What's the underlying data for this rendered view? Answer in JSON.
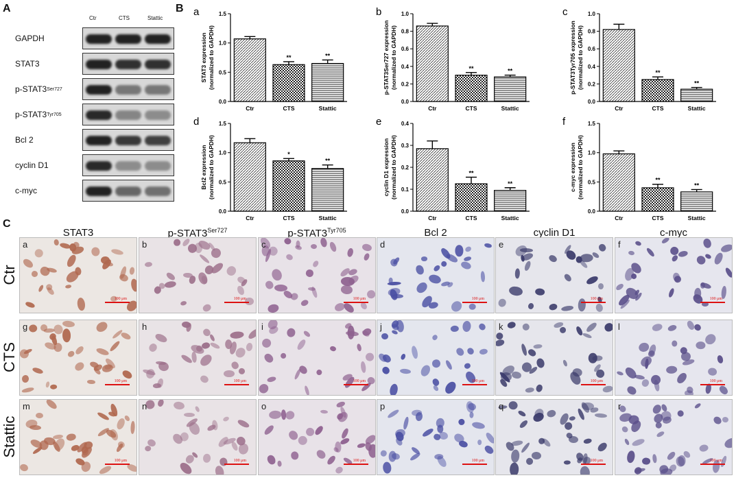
{
  "panelA": {
    "letter": "A",
    "lanes": [
      "Ctr",
      "CTS",
      "Stattic"
    ],
    "rows": [
      {
        "label": "GAPDH",
        "sup": "",
        "intensity": [
          1.0,
          1.0,
          1.0
        ]
      },
      {
        "label": "STAT3",
        "sup": "",
        "intensity": [
          1.0,
          0.9,
          0.9
        ]
      },
      {
        "label": "p-STAT3",
        "sup": "Ser727",
        "intensity": [
          1.0,
          0.45,
          0.45
        ]
      },
      {
        "label": "p-STAT3",
        "sup": "Tyr705",
        "intensity": [
          0.95,
          0.35,
          0.3
        ]
      },
      {
        "label": "Bcl 2",
        "sup": "",
        "intensity": [
          1.0,
          0.85,
          0.8
        ]
      },
      {
        "label": "cyclin D1",
        "sup": "",
        "intensity": [
          0.95,
          0.3,
          0.3
        ]
      },
      {
        "label": "c-myc",
        "sup": "",
        "intensity": [
          1.0,
          0.55,
          0.5
        ]
      }
    ]
  },
  "panelB": {
    "letter": "B"
  },
  "chart_data": [
    {
      "id": "a",
      "type": "bar",
      "categories": [
        "Ctr",
        "CTS",
        "Stattic"
      ],
      "values": [
        1.07,
        0.63,
        0.65
      ],
      "errors": [
        0.04,
        0.05,
        0.06
      ],
      "sig": [
        "",
        "**",
        "**"
      ],
      "ylabel": "STAT3 expression",
      "ylabel2": "(normalized to GAPDH)",
      "ylim": [
        0,
        1.5
      ],
      "ticks": [
        "0.0",
        "0.5",
        "1.0",
        "1.5"
      ]
    },
    {
      "id": "b",
      "type": "bar",
      "categories": [
        "Ctr",
        "CTS",
        "Stattic"
      ],
      "values": [
        0.86,
        0.3,
        0.28
      ],
      "errors": [
        0.03,
        0.03,
        0.02
      ],
      "sig": [
        "",
        "**",
        "**"
      ],
      "ylabel": "p-STAT3Ser727 expression",
      "ylabel2": "(normalized to GAPDH)",
      "ylim": [
        0,
        1.0
      ],
      "ticks": [
        "0.0",
        "0.2",
        "0.4",
        "0.6",
        "0.8",
        "1.0"
      ]
    },
    {
      "id": "c",
      "type": "bar",
      "categories": [
        "Ctr",
        "CTS",
        "Stattic"
      ],
      "values": [
        0.82,
        0.25,
        0.14
      ],
      "errors": [
        0.06,
        0.03,
        0.02
      ],
      "sig": [
        "",
        "**",
        "**"
      ],
      "ylabel": "p-STAT3Tyr705 expression",
      "ylabel2": "(normalized to GAPDH)",
      "ylim": [
        0,
        1.0
      ],
      "ticks": [
        "0.0",
        "0.2",
        "0.4",
        "0.6",
        "0.8",
        "1.0"
      ]
    },
    {
      "id": "d",
      "type": "bar",
      "categories": [
        "Ctr",
        "CTS",
        "Stattic"
      ],
      "values": [
        1.17,
        0.86,
        0.73
      ],
      "errors": [
        0.07,
        0.04,
        0.06
      ],
      "sig": [
        "",
        "*",
        "**"
      ],
      "ylabel": "Bcl2 expression",
      "ylabel2": "(normalized to GAPDH)",
      "ylim": [
        0,
        1.5
      ],
      "ticks": [
        "0.0",
        "0.5",
        "1.0",
        "1.5"
      ]
    },
    {
      "id": "e",
      "type": "bar",
      "categories": [
        "Ctr",
        "CTS",
        "Stattic"
      ],
      "values": [
        0.285,
        0.125,
        0.095
      ],
      "errors": [
        0.035,
        0.03,
        0.012
      ],
      "sig": [
        "",
        "**",
        "**"
      ],
      "ylabel": "cyclin D1 expression",
      "ylabel2": "(normalized to GAPDH)",
      "ylim": [
        0,
        0.4
      ],
      "ticks": [
        "0.0",
        "0.1",
        "0.2",
        "0.3",
        "0.4"
      ]
    },
    {
      "id": "f",
      "type": "bar",
      "categories": [
        "Ctr",
        "CTS",
        "Stattic"
      ],
      "values": [
        0.98,
        0.4,
        0.33
      ],
      "errors": [
        0.05,
        0.06,
        0.04
      ],
      "sig": [
        "",
        "**",
        "**"
      ],
      "ylabel": "c-myc expression",
      "ylabel2": "(normalized to GAPDH)",
      "ylim": [
        0,
        1.5
      ],
      "ticks": [
        "0.0",
        "0.5",
        "1.0",
        "1.5"
      ]
    }
  ],
  "panelC": {
    "letter": "C",
    "columns": [
      {
        "label": "STAT3",
        "sup": ""
      },
      {
        "label": "p-STAT3",
        "sup": "Ser727"
      },
      {
        "label": "p-STAT3",
        "sup": "Tyr705"
      },
      {
        "label": "Bcl 2",
        "sup": ""
      },
      {
        "label": "cyclin D1",
        "sup": ""
      },
      {
        "label": "c-myc",
        "sup": ""
      }
    ],
    "rows": [
      "Ctr",
      "CTS",
      "Stattic"
    ],
    "tile_letters": [
      "a",
      "b",
      "c",
      "d",
      "e",
      "f",
      "g",
      "h",
      "i",
      "j",
      "k",
      "l",
      "m",
      "n",
      "o",
      "p",
      "q",
      "r"
    ],
    "scale_text": "100 μm",
    "stain_colors": [
      "#b0684f",
      "#9c6f8a",
      "#8d5f8e",
      "#4a4fa3",
      "#3a3a6a",
      "#5a4f8a"
    ]
  }
}
